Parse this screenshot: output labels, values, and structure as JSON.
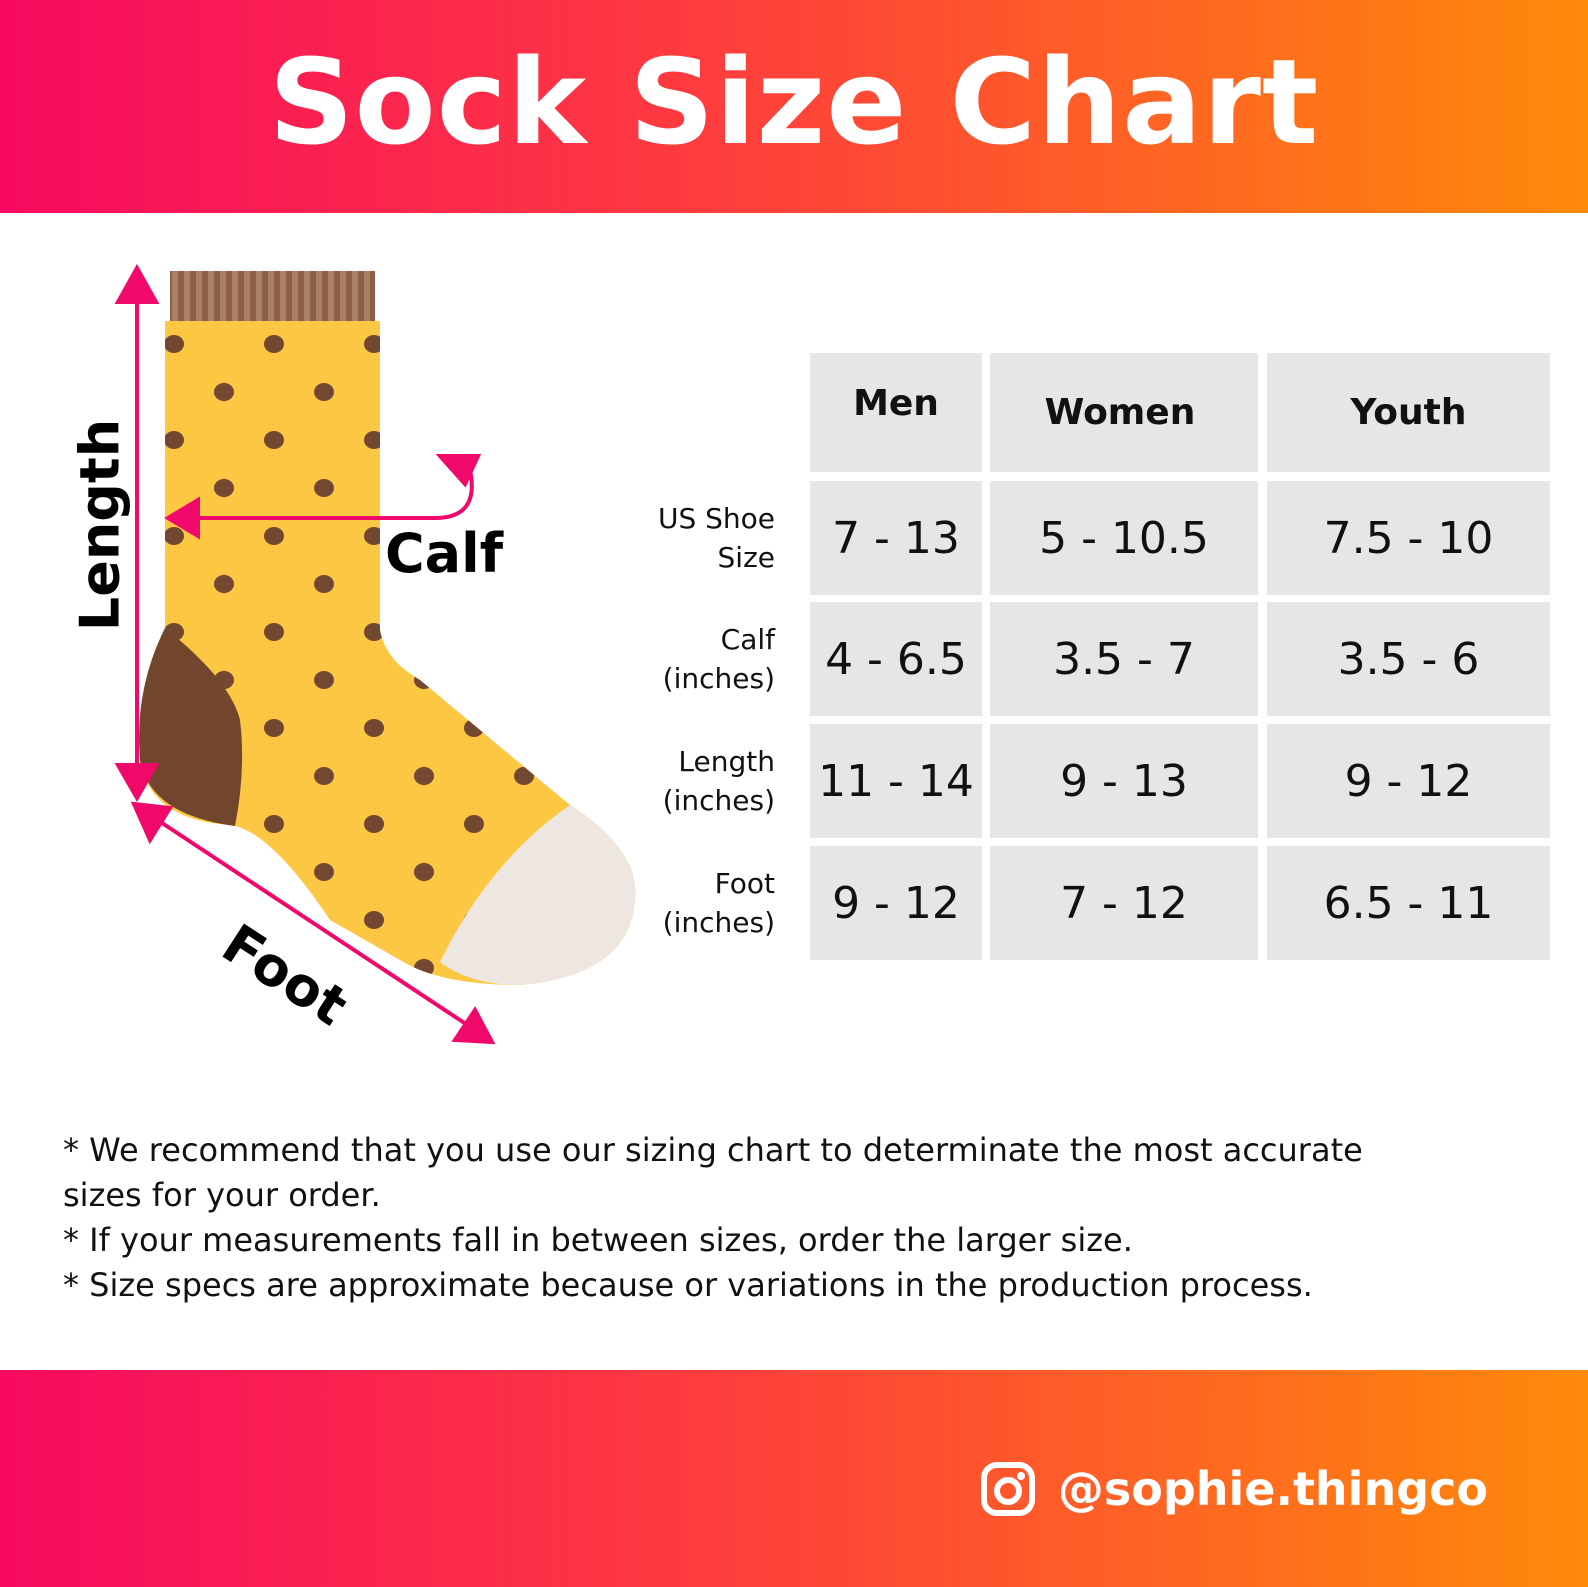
{
  "header": {
    "title": "Sock Size Chart"
  },
  "colors": {
    "gradient_start": "#f70a60",
    "gradient_end": "#ff8a0a",
    "sock_body": "#fcc844",
    "dots": "#724830",
    "heel": "#72452d",
    "toe": "#ede6e1",
    "arrow": "#f0086a",
    "table_cell": "#e6e6e6"
  },
  "illustration": {
    "labels": {
      "length": "Length",
      "calf": "Calf",
      "foot": "Foot"
    }
  },
  "table": {
    "columns": [
      "Men",
      "Women",
      "Youth"
    ],
    "rows": [
      {
        "label_line1": "US Shoe",
        "label_line2": "Size",
        "values": [
          "7 - 13",
          "5 - 10.5",
          "7.5 - 10"
        ]
      },
      {
        "label_line1": "Calf",
        "label_line2": "(inches)",
        "values": [
          "4 - 6.5",
          "3.5 - 7",
          "3.5 - 6"
        ]
      },
      {
        "label_line1": "Length",
        "label_line2": "(inches)",
        "values": [
          "11 - 14",
          "9 - 13",
          "9 - 12"
        ]
      },
      {
        "label_line1": "Foot",
        "label_line2": "(inches)",
        "values": [
          "9 - 12",
          "7 - 12",
          "6.5 - 11"
        ]
      }
    ]
  },
  "notes": [
    "* We recommend that you use our sizing chart to determinate the most accurate",
    "sizes for your order.",
    "* If your measurements fall in between sizes, order the larger size.",
    "* Size specs are approximate because or variations in the production process."
  ],
  "footer": {
    "icon": "instagram-icon",
    "handle": "@sophie.thingco"
  }
}
